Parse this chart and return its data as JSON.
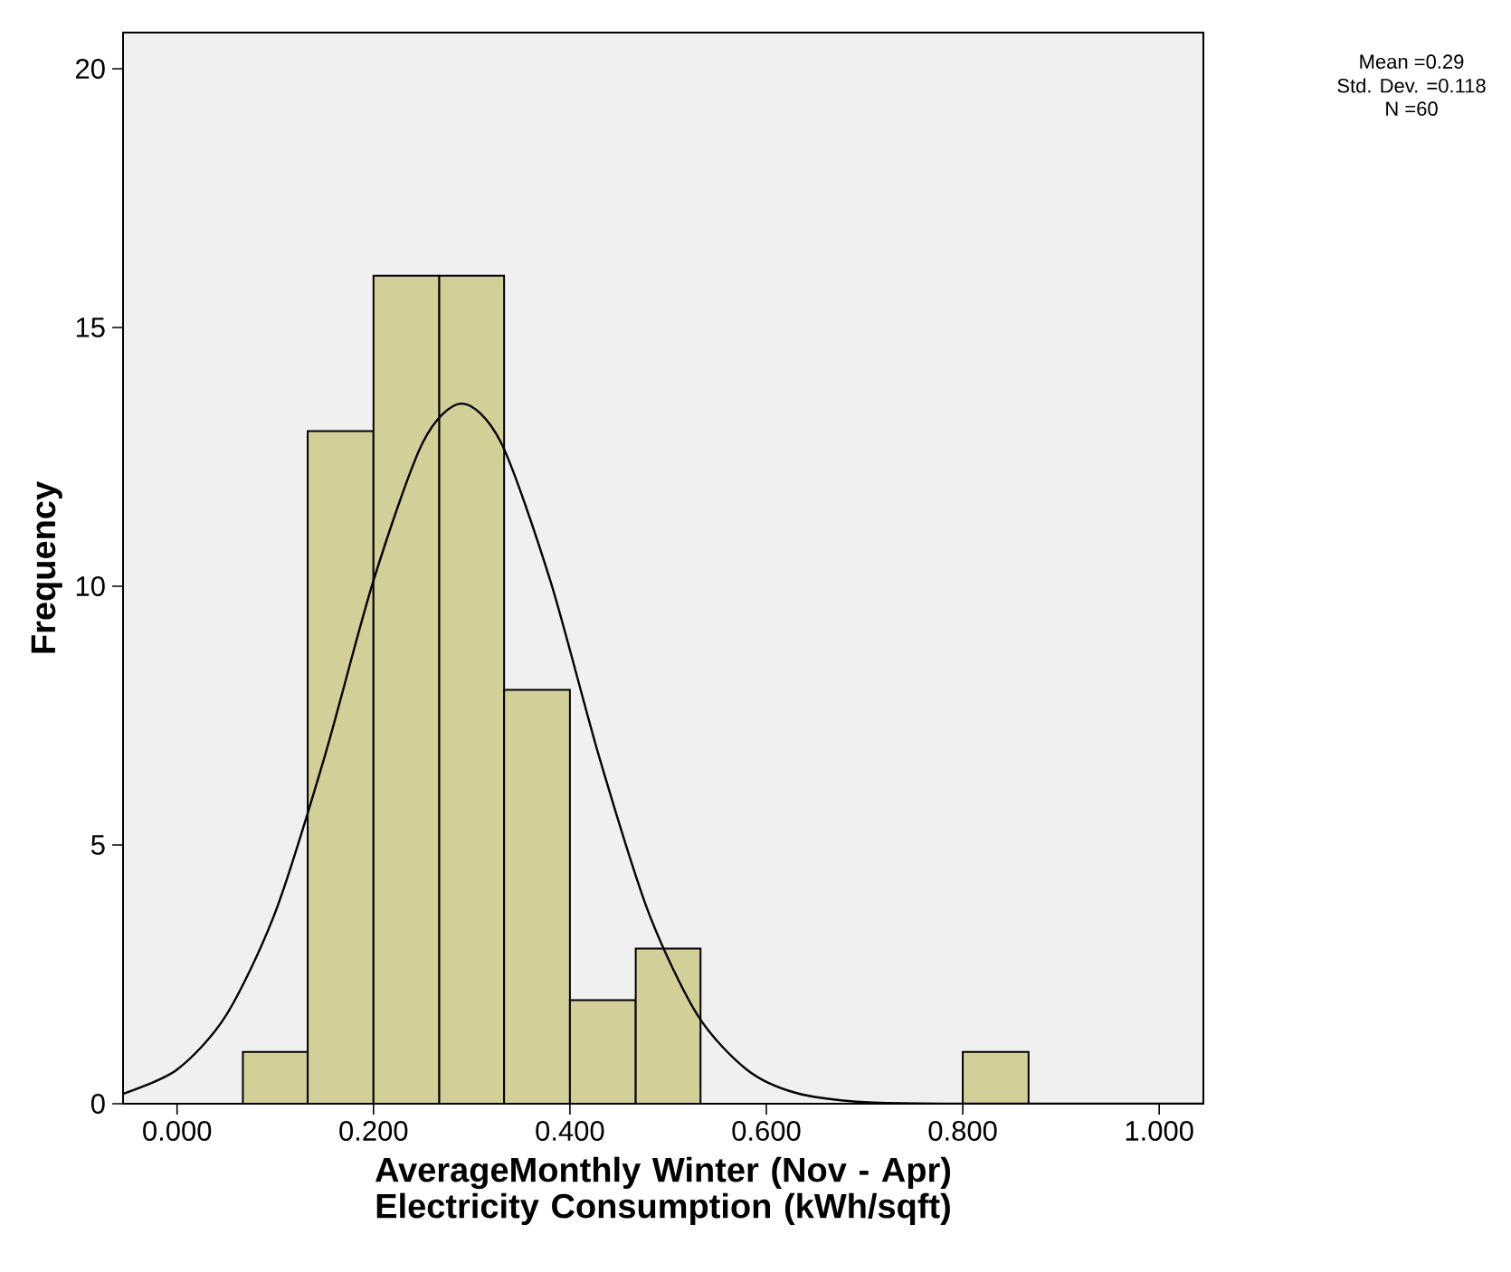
{
  "chart_data": {
    "type": "histogram",
    "xlabel": "AverageMonthly Winter (Nov - Apr) Electricity Consumption (kWh/sqft)",
    "ylabel": "Frequency",
    "bins": [
      0.067,
      0.133,
      0.2,
      0.267,
      0.333,
      0.4,
      0.467,
      0.533,
      0.8,
      0.867
    ],
    "values": [
      1,
      13,
      16,
      16,
      8,
      2,
      3,
      0,
      1
    ],
    "color": "#d3cf98",
    "series": [
      {
        "type": "line",
        "color": "#000000",
        "x": [
          -0.055,
          0,
          0.05,
          0.1,
          0.15,
          0.2,
          0.25,
          0.29,
          0.33,
          0.38,
          0.43,
          0.48,
          0.53,
          0.58,
          0.63,
          0.7,
          0.8,
          0.9,
          1.045
        ],
        "values": [
          0.19,
          0.66,
          1.71,
          3.7,
          6.69,
          10.11,
          12.77,
          13.53,
          12.77,
          10.11,
          6.69,
          3.7,
          1.71,
          0.66,
          0.21,
          0.03,
          0,
          0,
          0
        ]
      }
    ],
    "xlim": [
      -0.055,
      1.045
    ],
    "ylim": [
      0,
      20.7
    ],
    "xticks": [
      {
        "value": 0,
        "label": "0.000"
      },
      {
        "value": 0.2,
        "label": "0.200"
      },
      {
        "value": 0.4,
        "label": "0.400"
      },
      {
        "value": 0.6,
        "label": "0.600"
      },
      {
        "value": 0.8,
        "label": "0.800"
      },
      {
        "value": 1,
        "label": "1.000"
      }
    ],
    "yticks": [
      0,
      5,
      10,
      15,
      20
    ],
    "annotations": [
      "Mean =0.29",
      "Std. Dev. =0.118",
      "N =60"
    ]
  }
}
